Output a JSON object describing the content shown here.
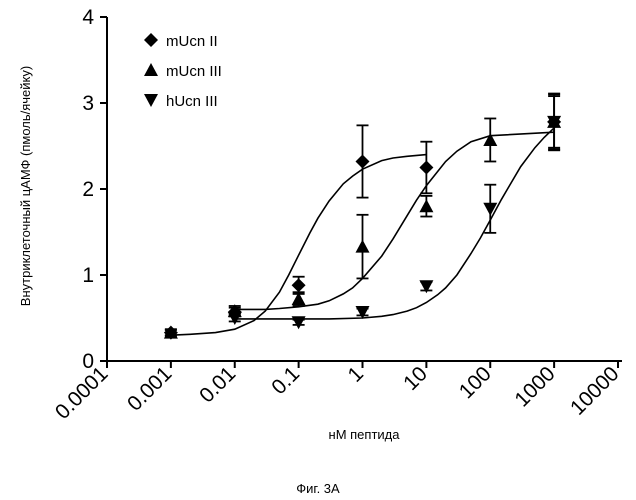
{
  "caption": "Фиг. 3А",
  "chart_data": {
    "type": "scatter",
    "xlabel": "нМ пептида",
    "ylabel": "Внутриклеточный цАМФ (пмоль/ячейку)",
    "x_scale": "log",
    "xlim": [
      0.0001,
      10000
    ],
    "ylim": [
      0,
      4
    ],
    "x_ticks": [
      0.0001,
      0.001,
      0.01,
      0.1,
      1,
      10,
      100,
      1000,
      10000
    ],
    "x_tick_labels": [
      "0.0001",
      "0.001",
      "0.01",
      "0.1",
      "1",
      "10",
      "100",
      "1000",
      "10000"
    ],
    "y_ticks": [
      0,
      1,
      2,
      3,
      4
    ],
    "y_tick_labels": [
      "0",
      "1",
      "2",
      "3",
      "4"
    ],
    "grid": false,
    "legend_position": "top-left",
    "series": [
      {
        "name": "mUcn II",
        "marker": "diamond",
        "x": [
          0.001,
          0.01,
          0.1,
          1,
          10,
          1000
        ],
        "y": [
          0.33,
          0.57,
          0.88,
          2.32,
          2.25,
          2.78
        ],
        "err": [
          0.03,
          0.05,
          0.1,
          0.42,
          0.3,
          0.33
        ],
        "fit_x": [
          0.001,
          0.002,
          0.005,
          0.01,
          0.02,
          0.03,
          0.05,
          0.07,
          0.1,
          0.15,
          0.2,
          0.3,
          0.5,
          0.7,
          1,
          2,
          3,
          5,
          10
        ],
        "fit_y": [
          0.3,
          0.31,
          0.33,
          0.37,
          0.47,
          0.58,
          0.8,
          1.0,
          1.23,
          1.49,
          1.66,
          1.86,
          2.06,
          2.15,
          2.23,
          2.33,
          2.36,
          2.38,
          2.4
        ]
      },
      {
        "name": "mUcn III",
        "marker": "triangle-up",
        "x": [
          0.001,
          0.01,
          0.1,
          1,
          10,
          100,
          1000
        ],
        "y": [
          0.33,
          0.58,
          0.72,
          1.33,
          1.8,
          2.57,
          2.78
        ],
        "err": [
          0.04,
          0.06,
          0.08,
          0.37,
          0.12,
          0.25,
          0.32
        ],
        "fit_x": [
          0.01,
          0.03,
          0.05,
          0.1,
          0.2,
          0.3,
          0.5,
          0.7,
          1,
          2,
          3,
          5,
          7,
          10,
          20,
          30,
          50,
          100,
          1000
        ],
        "fit_y": [
          0.6,
          0.6,
          0.61,
          0.63,
          0.66,
          0.7,
          0.78,
          0.85,
          0.96,
          1.22,
          1.42,
          1.69,
          1.87,
          2.04,
          2.32,
          2.44,
          2.55,
          2.62,
          2.66
        ]
      },
      {
        "name": "hUcn III",
        "marker": "triangle-down",
        "x": [
          0.01,
          0.1,
          1,
          10,
          100,
          1000
        ],
        "y": [
          0.5,
          0.45,
          0.57,
          0.87,
          1.77,
          2.78
        ],
        "err": [
          0.04,
          0.03,
          0.04,
          0.05,
          0.28,
          0.3
        ],
        "fit_x": [
          0.01,
          0.1,
          0.3,
          1,
          2,
          3,
          5,
          7,
          10,
          15,
          20,
          30,
          50,
          70,
          100,
          150,
          200,
          300,
          500,
          700,
          1000
        ],
        "fit_y": [
          0.49,
          0.49,
          0.49,
          0.5,
          0.52,
          0.54,
          0.58,
          0.62,
          0.68,
          0.77,
          0.85,
          1.0,
          1.25,
          1.43,
          1.64,
          1.88,
          2.04,
          2.26,
          2.48,
          2.6,
          2.71
        ]
      }
    ]
  }
}
